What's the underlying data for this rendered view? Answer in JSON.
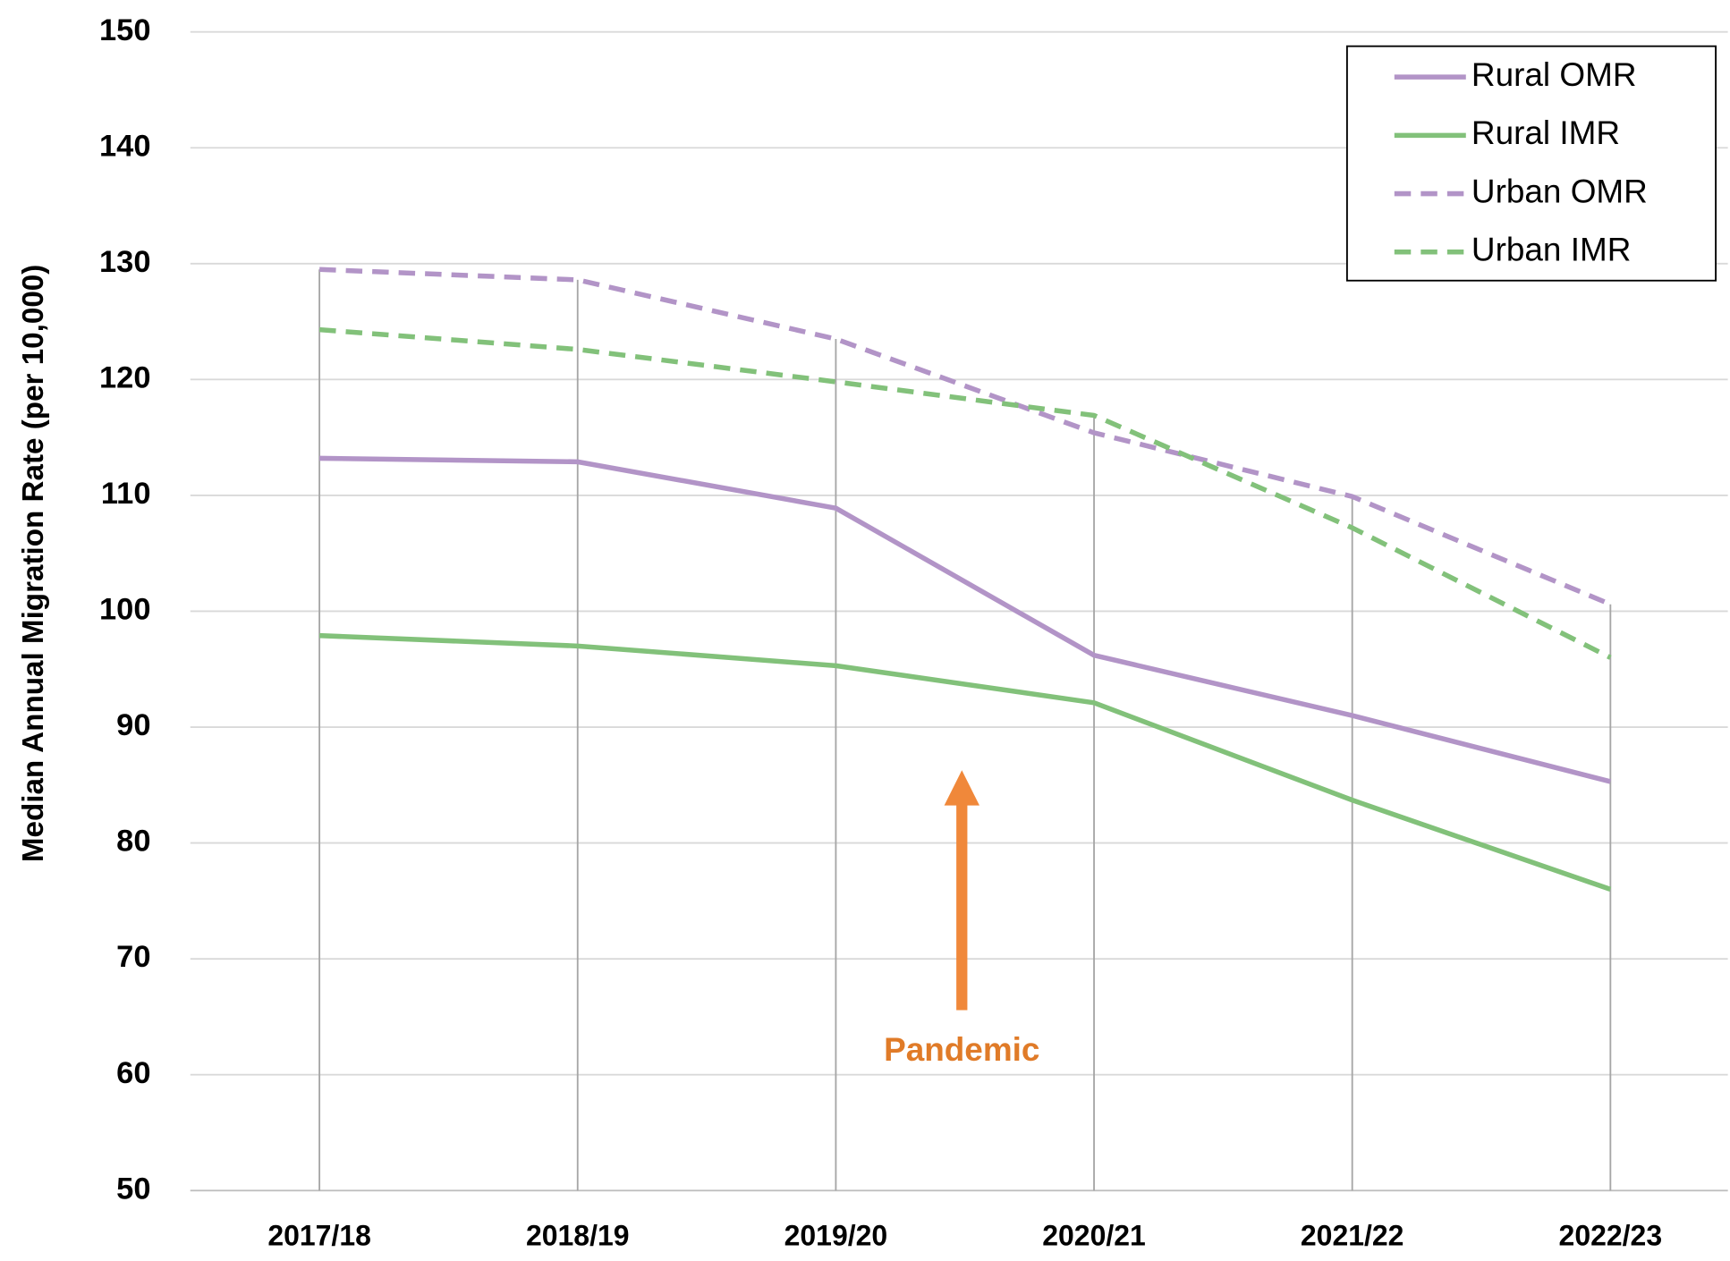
{
  "chart_data": {
    "type": "line",
    "y_label": "Median Annual Migration Rate (per 10,000)",
    "categories": [
      "2017/18",
      "2018/19",
      "2019/20",
      "2020/21",
      "2021/22",
      "2022/23"
    ],
    "series": [
      {
        "name": "Rural OMR",
        "color": "#b294c7",
        "dashed": false,
        "values": [
          113.2,
          112.9,
          108.9,
          96.2,
          91.0,
          85.3
        ]
      },
      {
        "name": "Rural IMR",
        "color": "#82c17a",
        "dashed": false,
        "values": [
          97.9,
          97.0,
          95.3,
          92.1,
          83.7,
          76.0
        ]
      },
      {
        "name": "Urban OMR",
        "color": "#b294c7",
        "dashed": true,
        "values": [
          129.5,
          128.6,
          123.5,
          115.4,
          109.9,
          100.6
        ]
      },
      {
        "name": "Urban IMR",
        "color": "#82c17a",
        "dashed": true,
        "values": [
          124.3,
          122.6,
          119.8,
          116.9,
          107.2,
          96.0
        ]
      }
    ],
    "ylim": [
      50,
      150
    ],
    "yticks": [
      50,
      60,
      70,
      80,
      90,
      100,
      110,
      120,
      130,
      140,
      150
    ],
    "grid": true,
    "legend": "top-right",
    "annotations": [
      {
        "text": "Pandemic",
        "color": "#e07b28"
      }
    ]
  }
}
